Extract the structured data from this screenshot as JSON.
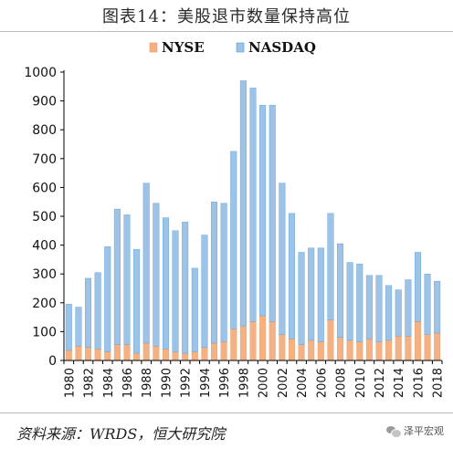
{
  "header": {
    "title": "图表14：美股退市数量保持高位"
  },
  "footer": {
    "source": "资料来源：WRDS，恒大研究院",
    "watermark": "泽平宏观"
  },
  "colors": {
    "nyse": "#f4b183",
    "nyse_edge": "#ed9a60",
    "nasdaq": "#9dc3e6",
    "nasdaq_edge": "#5b9bd5",
    "axis": "#000000"
  },
  "chart_data": {
    "type": "bar",
    "stacked": true,
    "categories": [
      "1980",
      "1981",
      "1982",
      "1983",
      "1984",
      "1985",
      "1986",
      "1987",
      "1988",
      "1989",
      "1990",
      "1991",
      "1992",
      "1993",
      "1994",
      "1995",
      "1996",
      "1997",
      "1998",
      "1999",
      "2000",
      "2001",
      "2002",
      "2003",
      "2004",
      "2005",
      "2006",
      "2007",
      "2008",
      "2009",
      "2010",
      "2011",
      "2012",
      "2013",
      "2014",
      "2015",
      "2016",
      "2017",
      "2018"
    ],
    "x_tick_labels": [
      "1980",
      "1982",
      "1984",
      "1986",
      "1988",
      "1990",
      "1992",
      "1994",
      "1996",
      "1998",
      "2000",
      "2002",
      "2004",
      "2006",
      "2008",
      "2010",
      "2012",
      "2014",
      "2016",
      "2018"
    ],
    "series": [
      {
        "name": "NYSE",
        "values": [
          35,
          50,
          45,
          40,
          30,
          55,
          55,
          25,
          60,
          50,
          40,
          30,
          25,
          30,
          45,
          60,
          65,
          110,
          120,
          135,
          155,
          135,
          90,
          75,
          55,
          70,
          65,
          140,
          80,
          70,
          65,
          75,
          65,
          70,
          85,
          85,
          135,
          90,
          95
        ]
      },
      {
        "name": "NASDAQ",
        "values": [
          160,
          135,
          240,
          265,
          365,
          470,
          450,
          360,
          555,
          495,
          455,
          420,
          455,
          290,
          390,
          490,
          480,
          615,
          850,
          810,
          730,
          750,
          525,
          435,
          320,
          320,
          325,
          370,
          325,
          270,
          270,
          220,
          230,
          190,
          160,
          195,
          240,
          210,
          180
        ]
      }
    ],
    "yticks": [
      0,
      100,
      200,
      300,
      400,
      500,
      600,
      700,
      800,
      900,
      1000
    ],
    "ylim": [
      0,
      1000
    ],
    "title": "",
    "xlabel": "",
    "ylabel": "",
    "grid": false,
    "legend_position": "top-center"
  }
}
